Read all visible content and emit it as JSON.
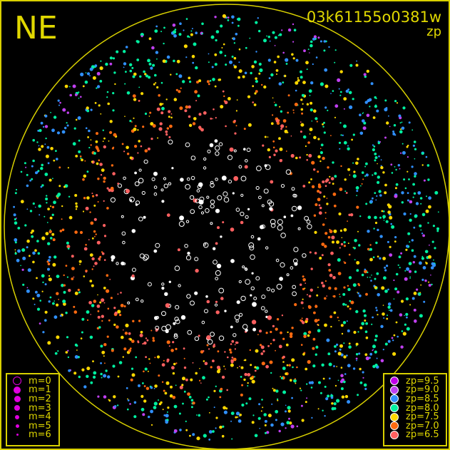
{
  "header": {
    "direction_label": "NE",
    "frame_id": "03k61155o0381w",
    "mode_label": "zp"
  },
  "magnitude_legend": {
    "marker_color": "#e000e0",
    "items": [
      {
        "label": "m=0",
        "style": "ring"
      },
      {
        "label": "m=1",
        "style": "dot"
      },
      {
        "label": "m=2",
        "style": "dot"
      },
      {
        "label": "m=3",
        "style": "dot"
      },
      {
        "label": "m=4",
        "style": "dot"
      },
      {
        "label": "m=5",
        "style": "dot"
      },
      {
        "label": "m=6",
        "style": "dot"
      }
    ]
  },
  "zp_legend": {
    "items": [
      {
        "label": "zp=9.5",
        "color": "#c000e8"
      },
      {
        "label": "zp=9.0",
        "color": "#c040f0"
      },
      {
        "label": "zp=8.5",
        "color": "#3090ff"
      },
      {
        "label": "zp=8.0",
        "color": "#00f0a0"
      },
      {
        "label": "zp=7.5",
        "color": "#ffd800"
      },
      {
        "label": "zp=7.0",
        "color": "#ff6a10"
      },
      {
        "label": "zp=6.5",
        "color": "#ff6060"
      }
    ]
  },
  "colors": {
    "frame": "#d8d000",
    "horizon": "#d8d000",
    "unmatched_star": "#ffffff"
  }
}
